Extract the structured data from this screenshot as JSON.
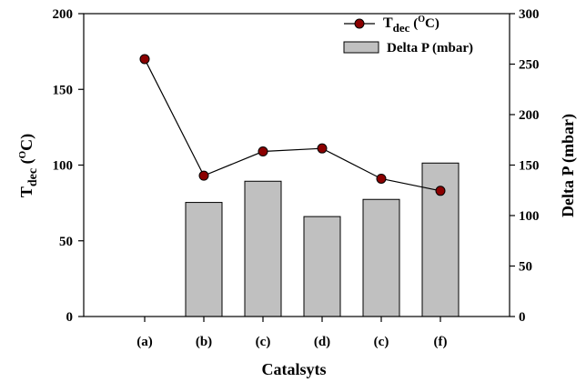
{
  "chart_data": {
    "type": "bar",
    "categories": [
      "(a)",
      "(b)",
      "(c)",
      "(d)",
      "(c)",
      "(f)"
    ],
    "xlabel": "Catalsyts",
    "y_left": {
      "label_main": "T",
      "label_sub": "dec",
      "label_unit_open": " (",
      "label_sup": "O",
      "label_unit_close": "C)",
      "range": [
        0,
        200
      ],
      "ticks": [
        0,
        50,
        100,
        150,
        200
      ]
    },
    "y_right": {
      "label": "Delta P (mbar)",
      "range": [
        0,
        300
      ],
      "ticks": [
        0,
        50,
        100,
        150,
        200,
        250,
        300
      ]
    },
    "series": [
      {
        "name": "Delta P (mbar)",
        "kind": "bar",
        "axis": "right",
        "values": [
          null,
          113,
          134,
          99,
          116,
          152
        ],
        "color": "#c0c0c0"
      },
      {
        "name_main": "T",
        "name_sub": "dec",
        "name_open": " (",
        "name_sup": "O",
        "name_close": "C)",
        "kind": "line",
        "axis": "left",
        "values": [
          170,
          93,
          109,
          111,
          91,
          83
        ],
        "color": "#8b0000"
      }
    ],
    "legend_position": "top-right",
    "grid": false
  }
}
